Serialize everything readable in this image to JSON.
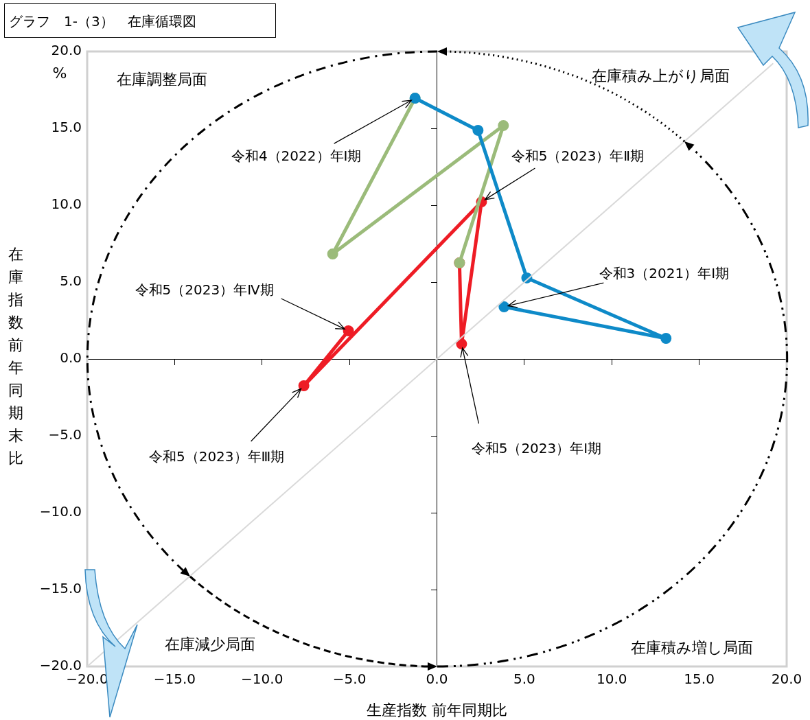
{
  "chart_data": {
    "type": "line",
    "title": "グラフ　1-（3）　在庫循環図",
    "xlabel": "生産指数 前年同期比",
    "ylabel": "在庫指数前年同期末比",
    "xlim": [
      -20,
      20
    ],
    "ylim": [
      -20,
      20
    ],
    "xticks": [
      {
        "value": -20,
        "label": "−20.0"
      },
      {
        "value": -15,
        "label": "−15.0"
      },
      {
        "value": -10,
        "label": "−10.0"
      },
      {
        "value": -5,
        "label": "−5.0"
      },
      {
        "value": 0,
        "label": "0.0"
      },
      {
        "value": 5,
        "label": "5.0"
      },
      {
        "value": 10,
        "label": "10.0"
      },
      {
        "value": 15,
        "label": "15.0"
      },
      {
        "value": 20,
        "label": "20.0"
      }
    ],
    "yticks": [
      {
        "value": -20,
        "label": "−20.0"
      },
      {
        "value": -15,
        "label": "−15.0"
      },
      {
        "value": -10,
        "label": "−10.0"
      },
      {
        "value": -5,
        "label": "−5.0"
      },
      {
        "value": 0,
        "label": "0.0"
      },
      {
        "value": 5,
        "label": "5.0"
      },
      {
        "value": 10,
        "label": "10.0"
      },
      {
        "value": 15,
        "label": "15.0"
      },
      {
        "value": 20,
        "label": "20.0"
      }
    ],
    "marker": "circle",
    "series": [
      {
        "type": "line",
        "color": "#d9d9d9",
        "marker": "none",
        "x": [
          -20,
          19.2
        ],
        "values": [
          -20,
          19.2
        ]
      },
      {
        "type": "line",
        "color": "#0e8ac8",
        "x": [
          3.84,
          13.1,
          5.14,
          2.35,
          -1.25
        ],
        "values": [
          3.39,
          1.34,
          5.27,
          14.87,
          16.96
        ]
      },
      {
        "type": "line",
        "color": "#9bbb7a",
        "x": [
          -1.25,
          -5.96,
          3.8,
          1.29
        ],
        "values": [
          16.96,
          6.83,
          15.18,
          6.25
        ]
      },
      {
        "type": "line",
        "color": "#ee1c25",
        "x": [
          1.29,
          1.41,
          2.55,
          -7.61,
          -5.06
        ],
        "values": [
          6.25,
          0.98,
          10.22,
          -1.74,
          1.83
        ]
      }
    ],
    "annotations": [
      {
        "text": "令和4（2022）年Ⅰ期",
        "x": -1.25,
        "y": 16.96
      },
      {
        "text": "令和5（2023）年Ⅱ期",
        "x": 2.55,
        "y": 10.22
      },
      {
        "text": "令和3（2021）年Ⅰ期",
        "x": 3.84,
        "y": 3.39
      },
      {
        "text": "令和5（2023）年Ⅳ期",
        "x": -5.06,
        "y": 1.83
      },
      {
        "text": "令和5（2023）年Ⅲ期",
        "x": -7.61,
        "y": -1.74
      },
      {
        "text": "令和5（2023）年Ⅰ期",
        "x": 1.41,
        "y": 0.98
      },
      "在庫調整局面",
      "在庫積み上がり局面",
      "在庫減少局面",
      "在庫積み増し局面",
      "%"
    ]
  }
}
